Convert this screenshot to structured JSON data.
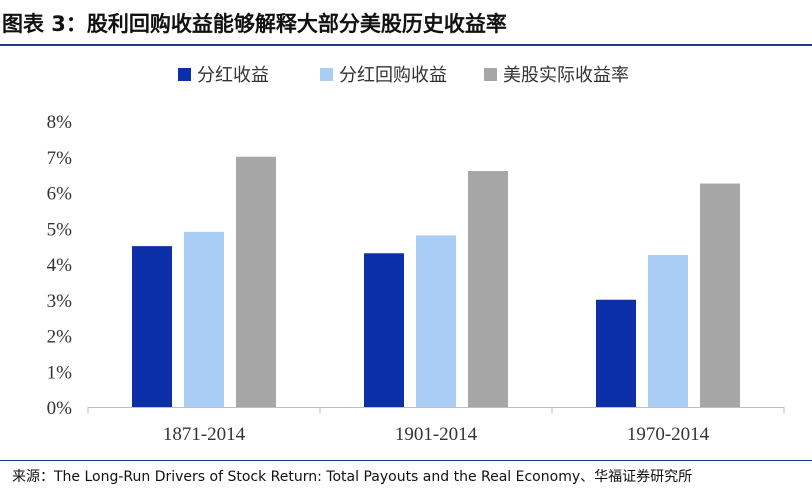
{
  "header": {
    "title": "图表 3：股利回购收益能够解释大部分美股历史收益率"
  },
  "footer": {
    "source": "来源：The Long-Run Drivers of Stock Return: Total Payouts and the Real Economy、华福证券研究所"
  },
  "colors": {
    "series": [
      "#0a2fa6",
      "#a9cdf5",
      "#a6a6a6"
    ],
    "rule": "#1f3a8a"
  },
  "chart_data": {
    "type": "bar",
    "categories": [
      "1871-2014",
      "1901-2014",
      "1970-2014"
    ],
    "series": [
      {
        "name": "分红收益",
        "values": [
          4.5,
          4.3,
          3.0
        ]
      },
      {
        "name": "分红回购收益",
        "values": [
          4.9,
          4.8,
          4.25
        ]
      },
      {
        "name": "美股实际收益率",
        "values": [
          7.0,
          6.6,
          6.25
        ]
      }
    ],
    "ylim": [
      0,
      8
    ],
    "yticks": [
      "0%",
      "1%",
      "2%",
      "3%",
      "4%",
      "5%",
      "6%",
      "7%",
      "8%"
    ],
    "legend_position": "top",
    "grid": false
  }
}
